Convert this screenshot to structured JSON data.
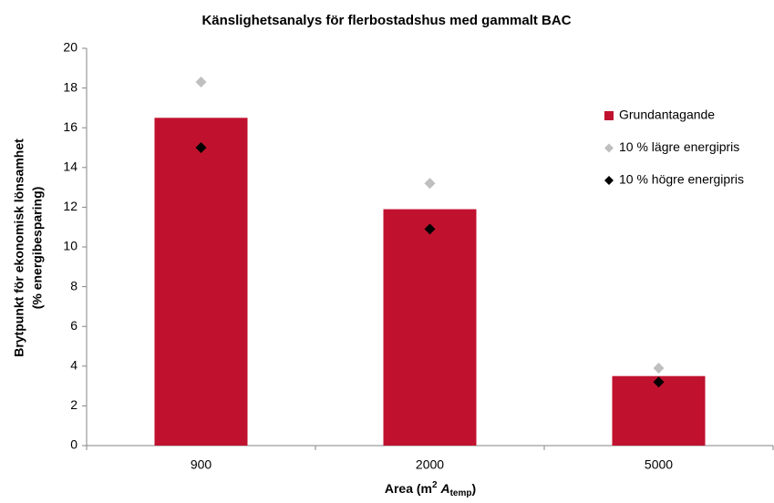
{
  "chart_data": {
    "type": "bar",
    "title": "Känslighetsanalys för flerbostadshus med gammalt BAC",
    "y_label": [
      "Brytpunkt för ekonomisk lönsamhet",
      "(% energibesparing)"
    ],
    "x_label": {
      "prefix": "Area (m",
      "sup": "2",
      "var": "A",
      "sub": "temp",
      "suffix": ")"
    },
    "categories": [
      "900",
      "2000",
      "5000"
    ],
    "series": [
      {
        "name": "Grundantagande",
        "type": "bar",
        "color": "#c0122f",
        "values": [
          16.5,
          11.9,
          3.5
        ]
      },
      {
        "name": "10 % lägre energipris",
        "type": "scatter",
        "color": "#bfbfbf",
        "values": [
          18.3,
          13.2,
          3.9
        ]
      },
      {
        "name": "10 % högre energipris",
        "type": "scatter",
        "color": "#000000",
        "values": [
          15.0,
          10.9,
          3.2
        ]
      }
    ],
    "ylim": [
      0,
      20
    ],
    "yticks": [
      0,
      2,
      4,
      6,
      8,
      10,
      12,
      14,
      16,
      18,
      20
    ],
    "grid": false,
    "legend": "right"
  }
}
